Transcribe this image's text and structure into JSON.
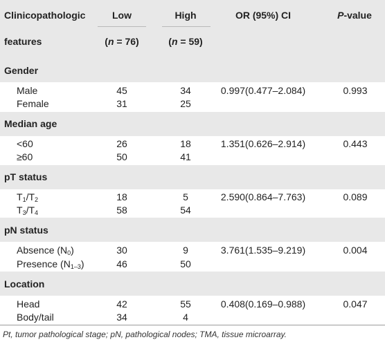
{
  "header": {
    "col1_line1": "Clinicopathologic",
    "col1_line2": "features",
    "low": "Low",
    "low_n": "(n = 76)",
    "high": "High",
    "high_n": "(n = 59)",
    "or_ci": "OR (95%) CI",
    "p_value": "P-value"
  },
  "groups": [
    {
      "title": "Gender",
      "rows": [
        {
          "label": "Male",
          "low": "45",
          "high": "34",
          "or": "0.997(0.477–2.084)",
          "p": "0.993"
        },
        {
          "label": "Female",
          "low": "31",
          "high": "25",
          "or": "",
          "p": ""
        }
      ]
    },
    {
      "title": "Median age",
      "rows": [
        {
          "label": "<60",
          "low": "26",
          "high": "18",
          "or": "1.351(0.626–2.914)",
          "p": "0.443"
        },
        {
          "label": "≥60",
          "low": "50",
          "high": "41",
          "or": "",
          "p": ""
        }
      ]
    },
    {
      "title": "pT status",
      "rows": [
        {
          "label_parts": [
            "T",
            "1",
            "/T",
            "2"
          ],
          "low": "18",
          "high": "5",
          "or": "2.590(0.864–7.763)",
          "p": "0.089"
        },
        {
          "label_parts": [
            "T",
            "3",
            "/T",
            "4"
          ],
          "low": "58",
          "high": "54",
          "or": "",
          "p": ""
        }
      ]
    },
    {
      "title": "pN status",
      "rows": [
        {
          "label_parts": [
            "Absence (N",
            "0",
            ")"
          ],
          "low": "30",
          "high": "9",
          "or": "3.761(1.535–9.219)",
          "p": "0.004"
        },
        {
          "label_parts": [
            "Presence (N",
            "1–3",
            ")"
          ],
          "low": "46",
          "high": "50",
          "or": "",
          "p": ""
        }
      ]
    },
    {
      "title": "Location",
      "rows": [
        {
          "label": "Head",
          "low": "42",
          "high": "55",
          "or": "0.408(0.169–0.988)",
          "p": "0.047"
        },
        {
          "label": "Body/tail",
          "low": "34",
          "high": "4",
          "or": "",
          "p": ""
        }
      ]
    }
  ],
  "footnote": "Pt, tumor pathological stage; pN, pathological nodes; TMA, tissue microarray."
}
